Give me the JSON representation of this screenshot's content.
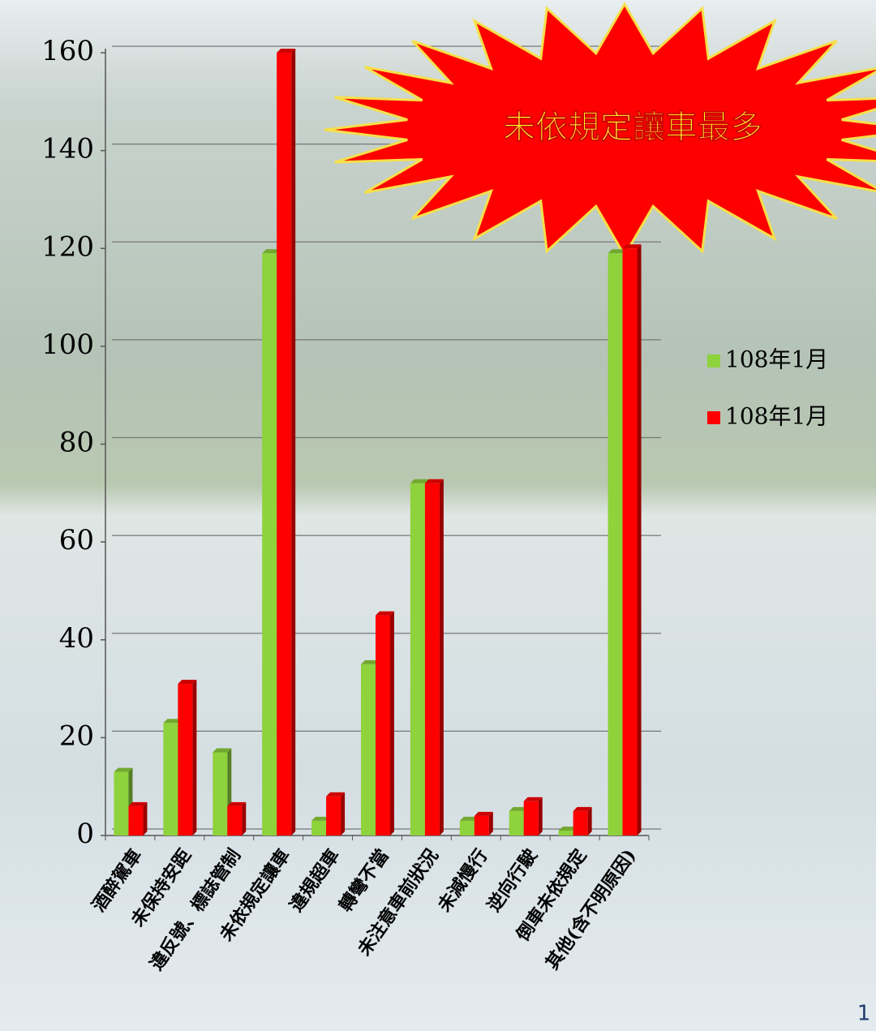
{
  "chart_data": {
    "type": "bar",
    "annotation": "未依規定讓車最多",
    "categories": [
      "酒醉駕車",
      "未保持安距",
      "違反號、標誌管制",
      "未依規定讓車",
      "違規超車",
      "轉彎不當",
      "未注意車前狀況",
      "未減慢行",
      "逆向行駛",
      "倒車未依規定",
      "其他(含不明原因)"
    ],
    "series": [
      {
        "name": "108年1月",
        "color": "#8ed23c",
        "values": [
          13,
          23,
          17,
          119,
          3,
          35,
          72,
          3,
          5,
          1,
          119
        ]
      },
      {
        "name": "108年1月",
        "color": "#ff0000",
        "values": [
          6,
          31,
          6,
          160,
          8,
          45,
          72,
          4,
          7,
          5,
          120
        ]
      }
    ],
    "ylim": [
      0,
      160
    ],
    "yticks": [
      0,
      20,
      40,
      60,
      80,
      100,
      120,
      140,
      160
    ],
    "grid": true,
    "legend": "right"
  },
  "slide_number": "1"
}
